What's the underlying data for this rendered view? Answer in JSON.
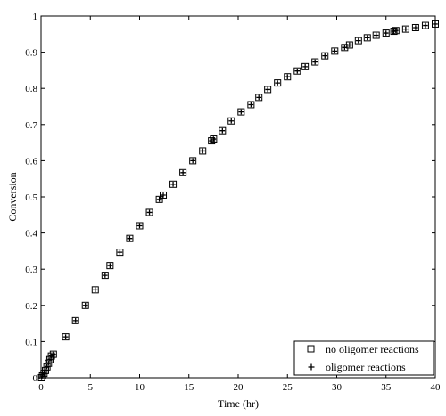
{
  "chart_data": {
    "type": "scatter",
    "title": "",
    "xlabel": "Time (hr)",
    "ylabel": "Conversion",
    "xlim": [
      0,
      40
    ],
    "ylim": [
      0,
      1
    ],
    "x_ticks": [
      "0",
      "5",
      "10",
      "15",
      "20",
      "25",
      "30",
      "35",
      "40"
    ],
    "y_ticks": [
      "0",
      "0.1",
      "0.2",
      "0.3",
      "0.4",
      "0.5",
      "0.6",
      "0.7",
      "0.8",
      "0.9",
      "1"
    ],
    "grid": false,
    "legend_position": "bottom-right",
    "series": [
      {
        "name": "no oligomer reactions",
        "marker": "square-open",
        "color": "#000000",
        "points": [
          [
            0.05,
            0.0
          ],
          [
            0.15,
            0.005
          ],
          [
            0.3,
            0.012
          ],
          [
            0.45,
            0.02
          ],
          [
            0.6,
            0.03
          ],
          [
            0.75,
            0.04
          ],
          [
            0.9,
            0.05
          ],
          [
            1.05,
            0.06
          ],
          [
            1.25,
            0.065
          ],
          [
            2.5,
            0.113
          ],
          [
            3.5,
            0.158
          ],
          [
            4.5,
            0.2
          ],
          [
            5.5,
            0.243
          ],
          [
            6.5,
            0.283
          ],
          [
            7.0,
            0.31
          ],
          [
            8.0,
            0.347
          ],
          [
            9.0,
            0.385
          ],
          [
            10.0,
            0.42
          ],
          [
            11.0,
            0.457
          ],
          [
            12.0,
            0.493
          ],
          [
            12.4,
            0.505
          ],
          [
            13.4,
            0.535
          ],
          [
            14.4,
            0.567
          ],
          [
            15.4,
            0.6
          ],
          [
            16.4,
            0.627
          ],
          [
            17.3,
            0.655
          ],
          [
            17.5,
            0.66
          ],
          [
            18.4,
            0.683
          ],
          [
            19.3,
            0.71
          ],
          [
            20.3,
            0.735
          ],
          [
            21.3,
            0.755
          ],
          [
            22.1,
            0.775
          ],
          [
            23.0,
            0.797
          ],
          [
            24.0,
            0.815
          ],
          [
            25.0,
            0.832
          ],
          [
            26.0,
            0.848
          ],
          [
            26.8,
            0.86
          ],
          [
            27.8,
            0.873
          ],
          [
            28.8,
            0.89
          ],
          [
            29.8,
            0.903
          ],
          [
            30.8,
            0.913
          ],
          [
            31.3,
            0.92
          ],
          [
            32.2,
            0.932
          ],
          [
            33.1,
            0.94
          ],
          [
            34.0,
            0.947
          ],
          [
            35.0,
            0.953
          ],
          [
            35.8,
            0.958
          ],
          [
            36.0,
            0.96
          ],
          [
            37.0,
            0.964
          ],
          [
            38.0,
            0.968
          ],
          [
            39.0,
            0.974
          ],
          [
            40.0,
            0.978
          ]
        ]
      },
      {
        "name": "oligomer reactions",
        "marker": "plus",
        "color": "#000000",
        "points": [
          [
            0.05,
            0.0
          ],
          [
            0.15,
            0.005
          ],
          [
            0.3,
            0.012
          ],
          [
            0.45,
            0.02
          ],
          [
            0.6,
            0.03
          ],
          [
            0.75,
            0.04
          ],
          [
            0.9,
            0.05
          ],
          [
            1.05,
            0.06
          ],
          [
            1.25,
            0.065
          ],
          [
            2.5,
            0.113
          ],
          [
            3.5,
            0.158
          ],
          [
            4.5,
            0.2
          ],
          [
            5.5,
            0.243
          ],
          [
            6.5,
            0.283
          ],
          [
            7.0,
            0.31
          ],
          [
            8.0,
            0.347
          ],
          [
            9.0,
            0.385
          ],
          [
            10.0,
            0.42
          ],
          [
            11.0,
            0.457
          ],
          [
            12.0,
            0.493
          ],
          [
            12.4,
            0.505
          ],
          [
            13.4,
            0.535
          ],
          [
            14.4,
            0.567
          ],
          [
            15.4,
            0.6
          ],
          [
            16.4,
            0.627
          ],
          [
            17.3,
            0.655
          ],
          [
            17.5,
            0.66
          ],
          [
            18.4,
            0.683
          ],
          [
            19.3,
            0.71
          ],
          [
            20.3,
            0.735
          ],
          [
            21.3,
            0.755
          ],
          [
            22.1,
            0.775
          ],
          [
            23.0,
            0.797
          ],
          [
            24.0,
            0.815
          ],
          [
            25.0,
            0.832
          ],
          [
            26.0,
            0.848
          ],
          [
            26.8,
            0.86
          ],
          [
            27.8,
            0.873
          ],
          [
            28.8,
            0.89
          ],
          [
            29.8,
            0.903
          ],
          [
            30.8,
            0.913
          ],
          [
            31.3,
            0.92
          ],
          [
            32.2,
            0.932
          ],
          [
            33.1,
            0.94
          ],
          [
            34.0,
            0.947
          ],
          [
            35.0,
            0.953
          ],
          [
            35.8,
            0.958
          ],
          [
            36.0,
            0.96
          ],
          [
            37.0,
            0.964
          ],
          [
            38.0,
            0.968
          ],
          [
            39.0,
            0.974
          ],
          [
            40.0,
            0.978
          ]
        ]
      }
    ]
  }
}
